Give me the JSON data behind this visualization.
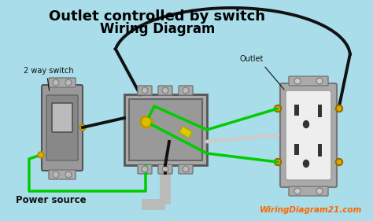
{
  "bg_color": "#a8dde9",
  "title_line1": "Outlet controlled by switch",
  "title_line2": "Wiring Diagram",
  "title_color": "#000000",
  "title_fontsize1": 13,
  "title_fontsize2": 12,
  "label_switch": "2 way switch",
  "label_outlet": "Outlet",
  "label_power": "Power source",
  "label_website": "WiringDiagram21.com",
  "wire_black_color": "#111111",
  "wire_green_color": "#00cc00",
  "wire_white_color": "#cccccc",
  "screw_gold_color": "#ccaa00",
  "screw_yellow_color": "#ddcc00",
  "orange_color": "#ff6600"
}
